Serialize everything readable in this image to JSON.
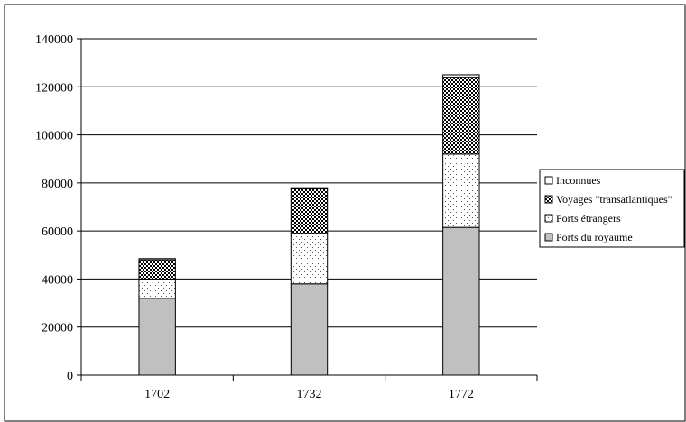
{
  "chart_data": {
    "type": "bar",
    "stacked": true,
    "categories": [
      "1702",
      "1732",
      "1772"
    ],
    "series": [
      {
        "name": "Ports du royaume",
        "values": [
          32000,
          38000,
          61500
        ],
        "color": "#c0c0c0",
        "pattern": "solid"
      },
      {
        "name": "Ports étrangers",
        "values": [
          8000,
          21000,
          30500
        ],
        "color": "#ffffff",
        "pattern": "dots"
      },
      {
        "name": "Voyages \"transatlantiques\"",
        "values": [
          8000,
          18500,
          32000
        ],
        "color": "#000000",
        "pattern": "checker"
      },
      {
        "name": "Inconnues",
        "values": [
          500,
          500,
          1000
        ],
        "color": "#ffffff",
        "pattern": "solid"
      }
    ],
    "legend_order": [
      3,
      2,
      1,
      0
    ],
    "yticks": [
      0,
      20000,
      40000,
      60000,
      80000,
      100000,
      120000,
      140000
    ],
    "ylim": [
      0,
      140000
    ],
    "grid": "horizontal",
    "legend_position": "right",
    "title": "",
    "xlabel": "",
    "ylabel": ""
  }
}
